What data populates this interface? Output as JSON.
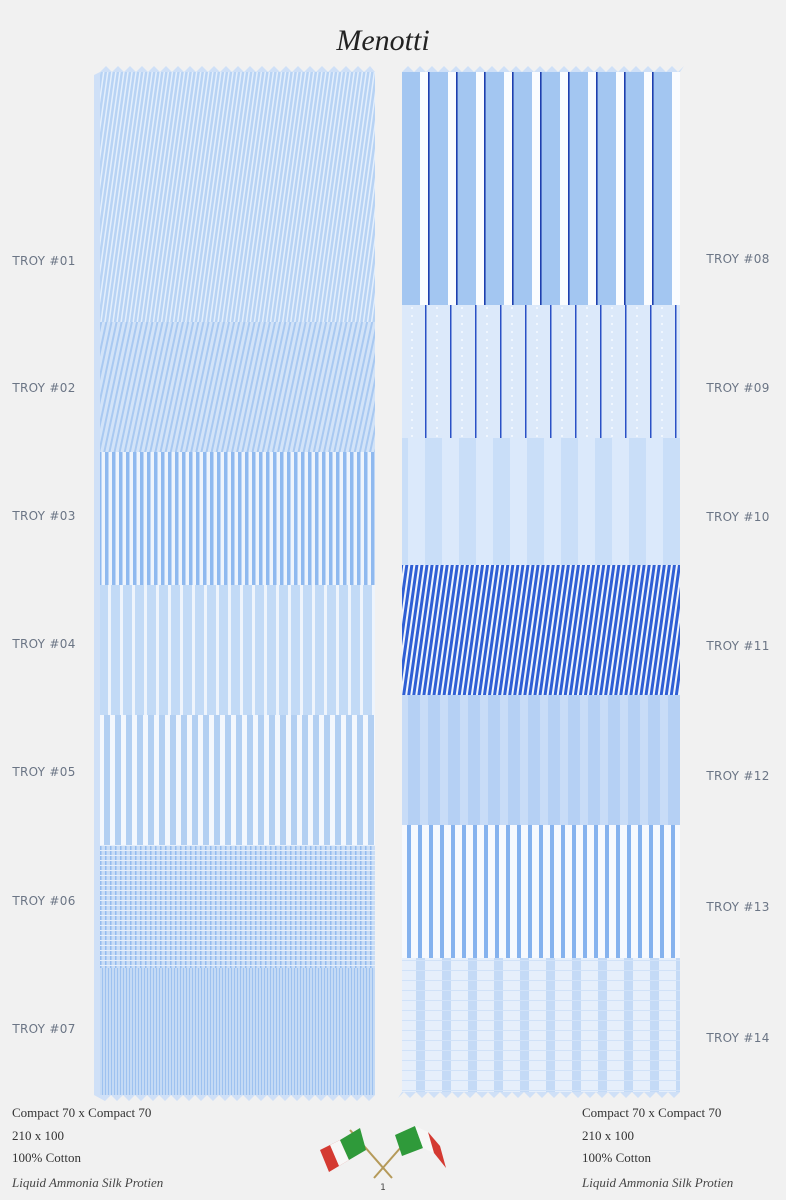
{
  "brand": "Menotti",
  "left": {
    "labels": [
      "TROY #01",
      "TROY #02",
      "TROY #03",
      "TROY #04",
      "TROY #05",
      "TROY #06",
      "TROY #07"
    ]
  },
  "right": {
    "labels": [
      "TROY #08",
      "TROY #09",
      "TROY #10",
      "TROY #11",
      "TROY #12",
      "TROY #13",
      "TROY #14"
    ]
  },
  "footer_left": {
    "lines": [
      "Compact 70 x Compact 70",
      "210 x 100",
      "100% Cotton",
      "Liquid Ammonia Silk Protien"
    ]
  },
  "footer_right": {
    "lines": [
      "Compact 70 x Compact 70",
      "210 x 100",
      "100% Cotton",
      "Liquid Ammonia Silk Protien"
    ]
  },
  "page_number": "1"
}
